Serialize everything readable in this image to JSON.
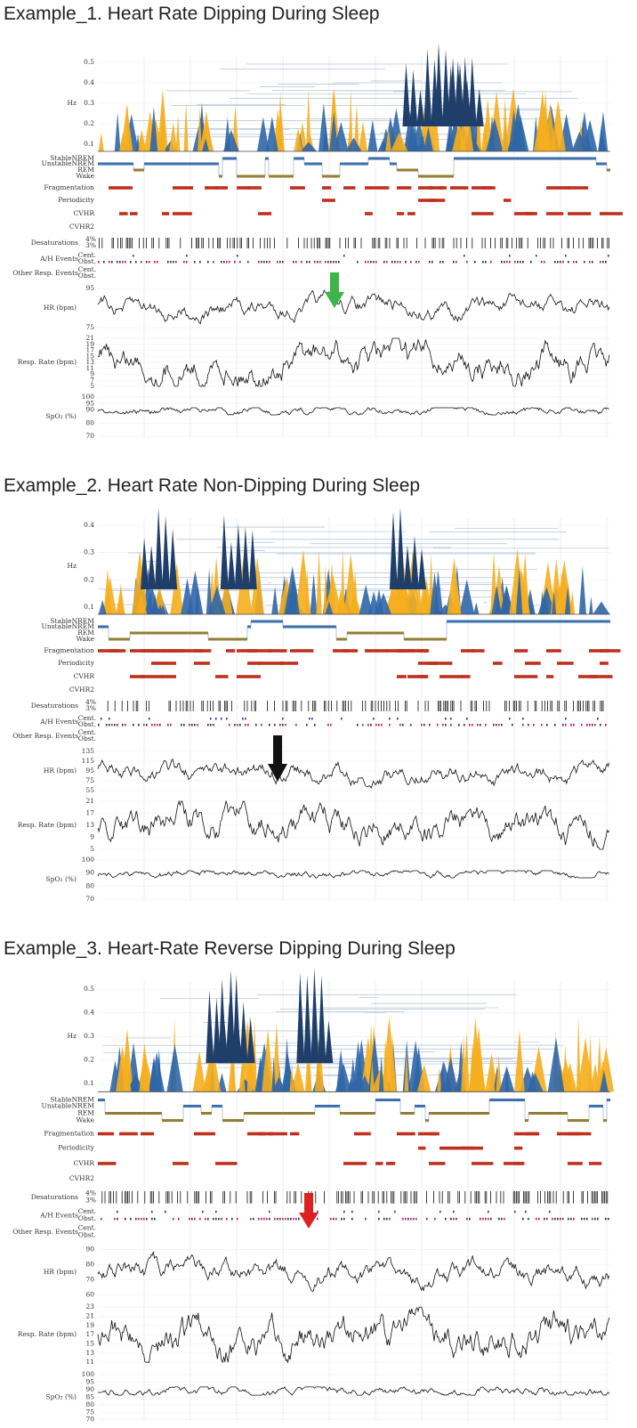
{
  "panels": [
    {
      "title": "Example_1. Heart Rate Dipping During Sleep",
      "hz": {
        "label": "Hz",
        "ticks": [
          0.5,
          0.4,
          0.3,
          0.2,
          0.1
        ]
      },
      "stages": [
        "StableNREM",
        "UnstableNREM",
        "REM",
        "Wake"
      ],
      "events": [
        "Fragmentation",
        "Periodicity",
        "CVHR",
        "CVHR2"
      ],
      "desat": {
        "label": "Desaturations",
        "levels": [
          "4%",
          "3%"
        ]
      },
      "ah": {
        "label": "A/H Events",
        "types": [
          "Cent.",
          "Obst."
        ]
      },
      "other": {
        "label": "Other Resp. Events",
        "types": [
          "Cent.",
          "Obst."
        ]
      },
      "hr": {
        "label": "HR (bpm)",
        "ticks": [
          95,
          75
        ]
      },
      "resp": {
        "label": "Resp. Rate (bpm)",
        "ticks": [
          21,
          19,
          17,
          15,
          13,
          11,
          9,
          7,
          5
        ]
      },
      "spo2": {
        "label": "SpO₂ (%)",
        "ticks": [
          100,
          95,
          90,
          80,
          70
        ]
      }
    },
    {
      "title": "Example_2. Heart Rate Non-Dipping During Sleep",
      "hz": {
        "label": "Hz",
        "ticks": [
          0.4,
          0.3,
          0.2,
          0.1
        ]
      },
      "stages": [
        "StableNREM",
        "UnstableNREM",
        "REM",
        "Wake"
      ],
      "events": [
        "Fragmentation",
        "Periodicity",
        "CVHR",
        "CVHR2"
      ],
      "desat": {
        "label": "Desaturations",
        "levels": [
          "4%",
          "3%"
        ]
      },
      "ah": {
        "label": "A/H Events",
        "types": [
          "Cent.",
          "Obst."
        ]
      },
      "other": {
        "label": "Other Resp. Events",
        "types": [
          "Cent.",
          "Obst."
        ]
      },
      "hr": {
        "label": "HR (bpm)",
        "ticks": [
          135,
          115,
          95,
          75,
          55
        ]
      },
      "resp": {
        "label": "Resp. Rate (bpm)",
        "ticks": [
          21,
          17,
          13,
          9,
          5
        ]
      },
      "spo2": {
        "label": "SpO₂ (%)",
        "ticks": [
          100,
          90,
          80,
          70
        ]
      }
    },
    {
      "title": "Example_3. Heart-Rate Reverse Dipping During Sleep",
      "hz": {
        "label": "Hz",
        "ticks": [
          0.5,
          0.4,
          0.3,
          0.2,
          0.1
        ]
      },
      "stages": [
        "StableNREM",
        "UnstableNREM",
        "REM",
        "Wake"
      ],
      "events": [
        "Fragmentation",
        "Periodicity",
        "CVHR",
        "CVHR2"
      ],
      "desat": {
        "label": "Desaturations",
        "levels": [
          "4%",
          "3%"
        ]
      },
      "ah": {
        "label": "A/H Events",
        "types": [
          "Cent.",
          "Obst."
        ]
      },
      "other": {
        "label": "Other Resp. Events",
        "types": [
          "Cent.",
          "Obst."
        ]
      },
      "hr": {
        "label": "HR (bpm)",
        "ticks": [
          90,
          80,
          70,
          60
        ]
      },
      "resp": {
        "label": "Resp. Rate (bpm)",
        "ticks": [
          23,
          21,
          19,
          17,
          15,
          13,
          11
        ]
      },
      "spo2": {
        "label": "SpO₂ (%)",
        "ticks": [
          100,
          95,
          90,
          85,
          80,
          75,
          70
        ]
      }
    }
  ]
}
